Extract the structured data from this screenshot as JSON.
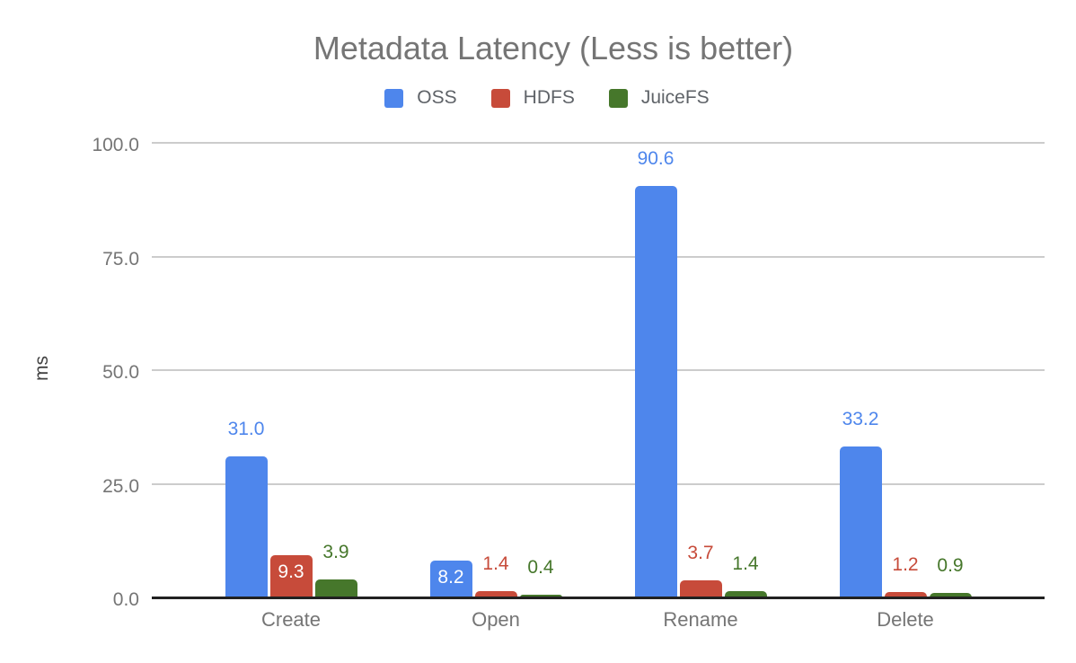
{
  "chart_data": {
    "type": "bar",
    "title": "Metadata Latency (Less is better)",
    "ylabel": "ms",
    "xlabel": "",
    "ylim": [
      0,
      100
    ],
    "yticks": [
      0,
      25,
      50,
      75,
      100
    ],
    "tick_decimals": 1,
    "value_decimals": 1,
    "grid": true,
    "legend_position": "top",
    "categories": [
      "Create",
      "Open",
      "Rename",
      "Delete"
    ],
    "series": [
      {
        "name": "OSS",
        "color": "#4E86EC",
        "values": [
          31.0,
          8.2,
          90.6,
          33.2
        ],
        "label_inside": [
          false,
          true,
          false,
          false
        ]
      },
      {
        "name": "HDFS",
        "color": "#C74B3A",
        "values": [
          9.3,
          1.4,
          3.7,
          1.2
        ],
        "label_inside": [
          true,
          false,
          false,
          false
        ]
      },
      {
        "name": "JuiceFS",
        "color": "#46772B",
        "values": [
          3.9,
          0.4,
          1.4,
          0.9
        ],
        "label_inside": [
          false,
          false,
          false,
          false
        ]
      }
    ],
    "colors": {
      "grid": "#cccccc",
      "baseline": "#212121",
      "axis_text": "#757575",
      "title_text": "#757575",
      "legend_text": "#5f6368",
      "y_axis_title_text": "#424242",
      "inside_label_text": "#ffffff"
    }
  }
}
